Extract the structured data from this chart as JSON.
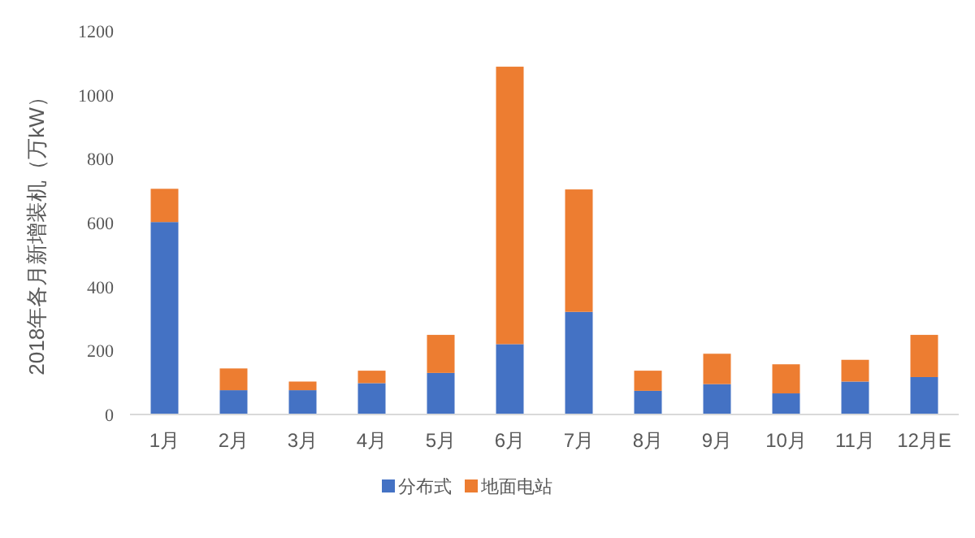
{
  "chart_data": {
    "type": "bar",
    "stacked": true,
    "ylabel": "2018年各月新增装机（万kW）",
    "categories": [
      "1月",
      "2月",
      "3月",
      "4月",
      "5月",
      "6月",
      "7月",
      "8月",
      "9月",
      "10月",
      "11月",
      "12月E"
    ],
    "series": [
      {
        "name": "分布式",
        "color": "#4472c4",
        "values": [
          602,
          76,
          76,
          98,
          130,
          220,
          321,
          74,
          95,
          66,
          103,
          117
        ]
      },
      {
        "name": "地面电站",
        "color": "#ed7d31",
        "values": [
          104,
          68,
          27,
          39,
          119,
          868,
          383,
          63,
          95,
          91,
          68,
          132
        ]
      }
    ],
    "ylim": [
      0,
      1200
    ],
    "yticks": [
      0,
      200,
      400,
      600,
      800,
      1000,
      1200
    ],
    "grid": false,
    "legend": "bottom"
  }
}
